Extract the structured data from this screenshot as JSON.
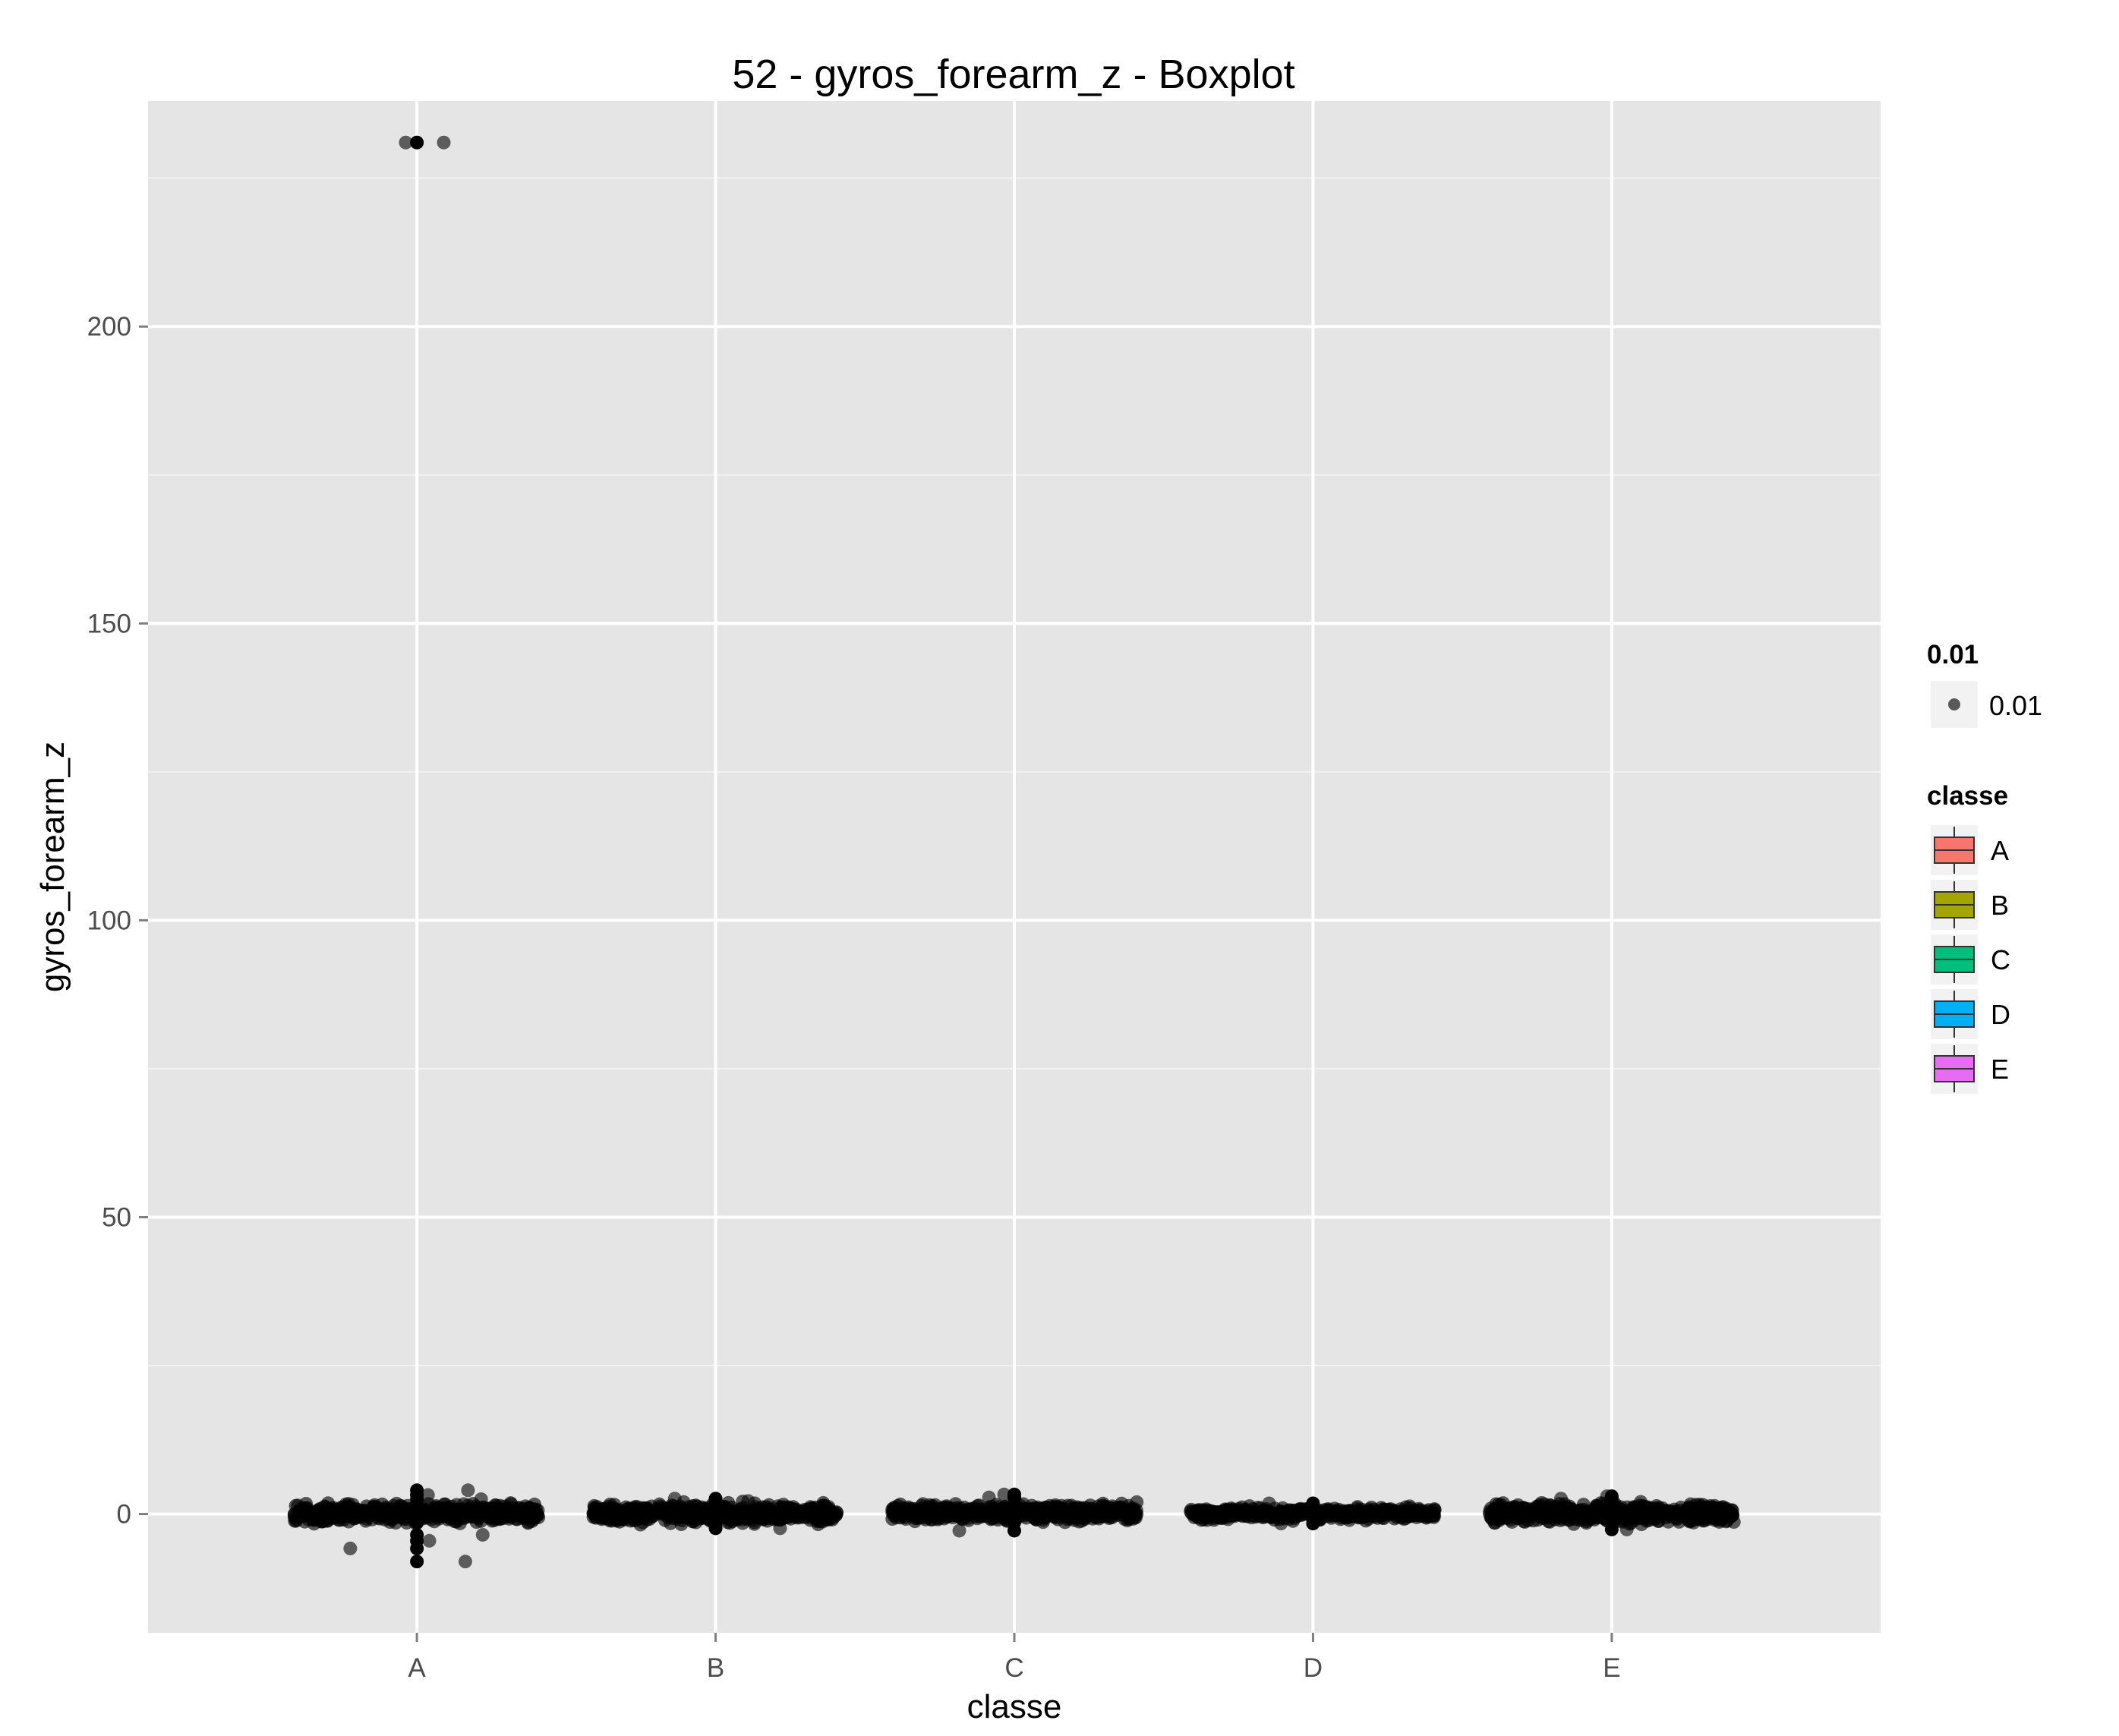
{
  "chart_data": {
    "type": "boxplot",
    "title": "52 - gyros_forearm_z - Boxplot",
    "xlabel": "classe",
    "ylabel": "gyros_forearm_z",
    "categories": [
      "A",
      "B",
      "C",
      "D",
      "E"
    ],
    "ylim": [
      -20,
      238
    ],
    "yticks": [
      0,
      50,
      100,
      150,
      200
    ],
    "grid": true,
    "legend_position": "right",
    "series": [
      {
        "name": "A",
        "color": "#F8766D",
        "median": 0.1,
        "q1": -0.2,
        "q3": 0.5,
        "whisker_low": -1.5,
        "whisker_high": 1.5,
        "jitter_spread": 2.0,
        "outliers": [
          231,
          4.0,
          3.2,
          -3.5,
          -4.5,
          -5.8,
          -8.0,
          2.5
        ]
      },
      {
        "name": "B",
        "color": "#A3A500",
        "median": 0.1,
        "q1": -0.3,
        "q3": 0.6,
        "whisker_low": -1.6,
        "whisker_high": 1.8,
        "jitter_spread": 2.2,
        "outliers": [
          2.6,
          -2.4,
          2.2
        ]
      },
      {
        "name": "C",
        "color": "#00BF7D",
        "median": 0.2,
        "q1": -0.2,
        "q3": 0.6,
        "whisker_low": -1.4,
        "whisker_high": 1.6,
        "jitter_spread": 2.0,
        "outliers": [
          3.3,
          -2.8,
          2.8
        ]
      },
      {
        "name": "D",
        "color": "#00B0F6",
        "median": 0.1,
        "q1": -0.2,
        "q3": 0.4,
        "whisker_low": -1.0,
        "whisker_high": 1.3,
        "jitter_spread": 1.4,
        "outliers": [
          1.8,
          -1.6
        ]
      },
      {
        "name": "E",
        "color": "#E76BF3",
        "median": 0.1,
        "q1": -0.3,
        "q3": 0.5,
        "whisker_low": -1.6,
        "whisker_high": 1.8,
        "jitter_spread": 2.2,
        "outliers": [
          3.0,
          -2.6,
          2.6
        ]
      }
    ],
    "extra_points": [
      {
        "category": "A",
        "offset": 0.09,
        "y": 231
      }
    ],
    "point_legend": {
      "title": "0.01",
      "label": "0.01"
    },
    "fill_legend": {
      "title": "classe"
    }
  }
}
